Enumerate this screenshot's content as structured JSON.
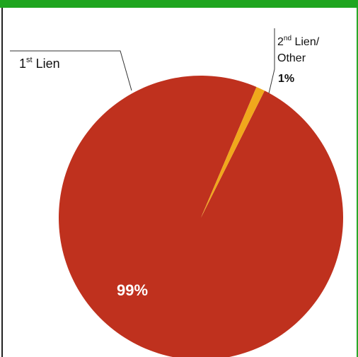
{
  "chart_data": {
    "type": "pie",
    "slices": [
      {
        "label": "1st Lien",
        "label_base": "1",
        "label_sup": "st",
        "label_rest": " Lien",
        "value": 99,
        "value_label": "99%",
        "color": "#bf311e"
      },
      {
        "label": "2nd Lien/ Other",
        "label_base": "2",
        "label_sup": "nd",
        "label_rest": " Lien/",
        "label_line2": "Other",
        "value": 1,
        "value_label": "1%",
        "color": "#f0a81c"
      }
    ]
  },
  "frame": {
    "top_bar_color": "#1fa51f"
  }
}
